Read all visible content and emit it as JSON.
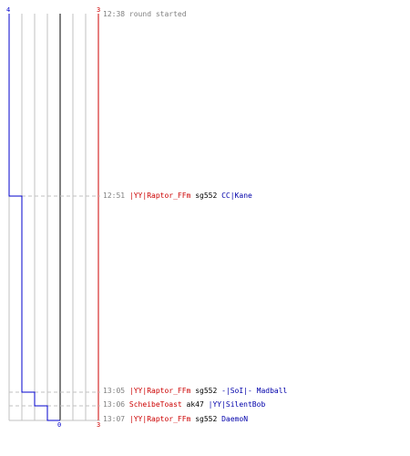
{
  "scale": {
    "blue_top_label": "4",
    "red_top_label": "3",
    "bottom_center_label": "0",
    "bottom_red_label": "3"
  },
  "colors": {
    "team_blue": "#0000cc",
    "team_red": "#cc0000",
    "grid": "#c0c0c0",
    "center_line": "#808080",
    "time_text": "#808080",
    "weapon_text": "#000000"
  },
  "events": [
    {
      "time": "12:38",
      "text": "round started"
    },
    {
      "time": "12:51",
      "killer": "|YY|Raptor_FFm",
      "weapon": "sg552",
      "victim": "CC|Kane"
    },
    {
      "time": "13:05",
      "killer": "|YY|Raptor_FFm",
      "weapon": "sg552",
      "victim": "-|SoI|- Madball"
    },
    {
      "time": "13:06",
      "killer": "ScheibeToast",
      "weapon": "ak47",
      "victim": "|YY|SilentBob"
    },
    {
      "time": "13:07",
      "killer": "|YY|Raptor_FFm",
      "weapon": "sg552",
      "victim": "DaemoN"
    }
  ]
}
